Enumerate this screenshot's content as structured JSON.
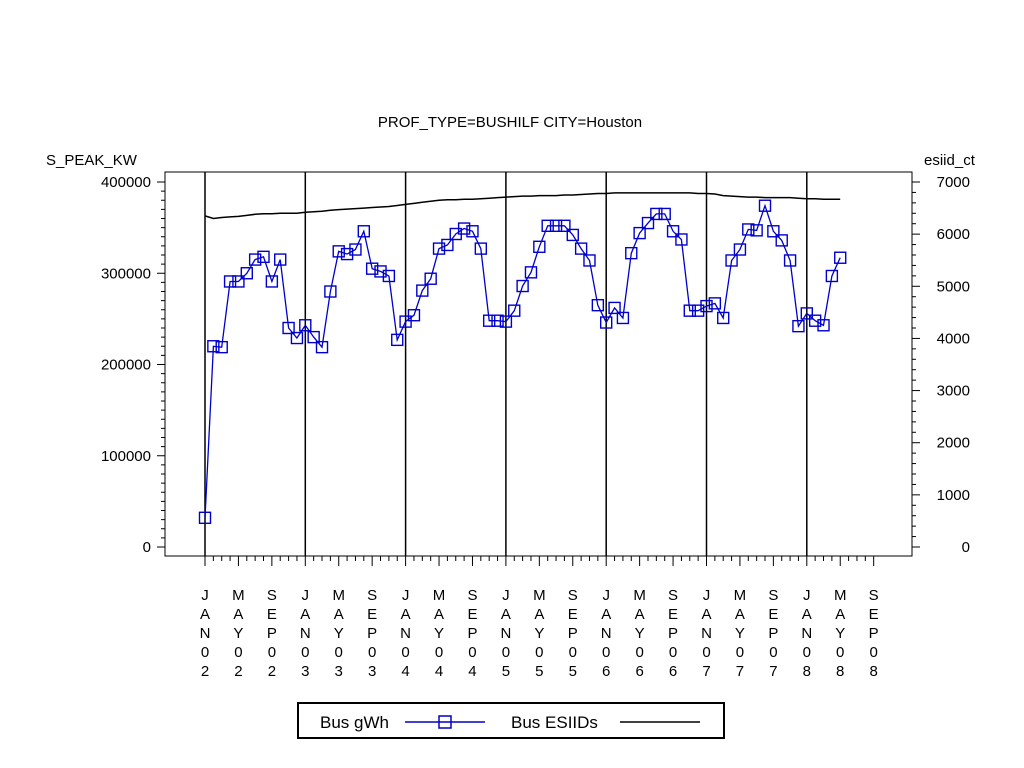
{
  "chart_data": {
    "type": "line",
    "title": "PROF_TYPE=BUSHILF CITY=Houston",
    "ylabel": "S_PEAK_KW",
    "y2label": "esiid_ct",
    "ylim": [
      0,
      400000
    ],
    "y2lim": [
      0,
      7000
    ],
    "yticks": [
      "0",
      "100000",
      "200000",
      "300000",
      "400000"
    ],
    "y2ticks": [
      "0",
      "1000",
      "2000",
      "3000",
      "4000",
      "5000",
      "6000",
      "7000"
    ],
    "xticks": [
      "JAN02",
      "MAY02",
      "SEP02",
      "JAN03",
      "MAY03",
      "SEP03",
      "JAN04",
      "MAY04",
      "SEP04",
      "JAN05",
      "MAY05",
      "SEP05",
      "JAN06",
      "MAY06",
      "SEP06",
      "JAN07",
      "MAY07",
      "SEP07",
      "JAN08",
      "MAY08",
      "SEP08"
    ],
    "x_start": "JAN02",
    "year_lines": [
      "JAN02",
      "JAN03",
      "JAN04",
      "JAN05",
      "JAN06",
      "JAN07",
      "JAN08"
    ],
    "series": [
      {
        "name": "Bus gWh",
        "axis": "left",
        "color": "#0000CC",
        "marker": "square",
        "values": [
          32000,
          220000,
          219000,
          291000,
          291000,
          300000,
          315000,
          318000,
          291000,
          315000,
          240000,
          229000,
          243000,
          230000,
          219000,
          280000,
          324000,
          321000,
          326000,
          346000,
          305000,
          302000,
          297000,
          227000,
          247000,
          254000,
          281000,
          294000,
          327000,
          331000,
          343000,
          349000,
          346000,
          327000,
          248000,
          248000,
          247000,
          259000,
          286000,
          301000,
          329000,
          352000,
          352000,
          352000,
          342000,
          327000,
          314000,
          265000,
          246000,
          262000,
          251000,
          322000,
          344000,
          355000,
          365000,
          365000,
          346000,
          337000,
          259000,
          259000,
          264000,
          267000,
          251000,
          314000,
          326000,
          348000,
          347000,
          374000,
          346000,
          336000,
          314000,
          242000,
          256000,
          248000,
          243000,
          297000,
          317000
        ]
      },
      {
        "name": "Bus ESIIDs",
        "axis": "right",
        "color": "#000000",
        "marker": "none",
        "values": [
          6350,
          6300,
          6320,
          6330,
          6340,
          6360,
          6380,
          6390,
          6390,
          6400,
          6400,
          6400,
          6420,
          6430,
          6440,
          6460,
          6470,
          6480,
          6490,
          6500,
          6510,
          6520,
          6530,
          6550,
          6570,
          6590,
          6610,
          6630,
          6650,
          6660,
          6660,
          6670,
          6670,
          6680,
          6690,
          6700,
          6710,
          6720,
          6730,
          6730,
          6740,
          6740,
          6740,
          6750,
          6750,
          6760,
          6770,
          6780,
          6780,
          6790,
          6790,
          6790,
          6790,
          6790,
          6790,
          6790,
          6790,
          6790,
          6790,
          6780,
          6780,
          6770,
          6740,
          6730,
          6720,
          6710,
          6710,
          6700,
          6700,
          6700,
          6700,
          6690,
          6680,
          6680,
          6670,
          6670,
          6670
        ]
      }
    ],
    "legend": {
      "position": "bottom",
      "entries": [
        "Bus gWh",
        "Bus ESIIDs"
      ]
    }
  }
}
